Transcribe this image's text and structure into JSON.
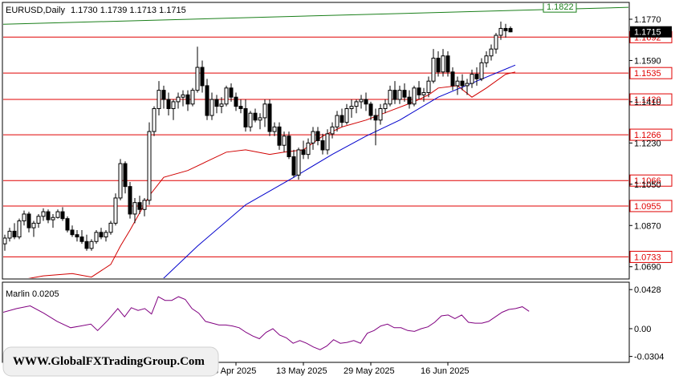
{
  "header": {
    "symbol": "EURUSD,Daily",
    "ohlc": "1.1730 1.1739 1.1713 1.1715"
  },
  "indicator": {
    "label": "Marlin 0.0205"
  },
  "watermark": {
    "text": "WWW.GlobalFXTradingGroup.Com"
  },
  "colors": {
    "bull": "#ffffff",
    "bear": "#000000",
    "wick": "#000000",
    "ma_fast": "#d00000",
    "ma_slow": "#0000cc",
    "levels": "#e00000",
    "channel": "#1a7f1a",
    "oscillator": "#800080"
  },
  "chart_data": [
    {
      "type": "candlestick",
      "title": "EURUSD,Daily",
      "y_ticks": [
        1.069,
        1.087,
        1.105,
        1.123,
        1.141,
        1.159,
        1.177
      ],
      "ylim": [
        1.064,
        1.184
      ],
      "x_ticks": [
        "25 Apr 2025",
        "13 May 2025",
        "29 May 2025",
        "16 Jun 2025"
      ],
      "current_price": "1.1715",
      "levels": [
        {
          "label": "1.1692",
          "value": 1.1692
        },
        {
          "label": "1.1535",
          "value": 1.1535
        },
        {
          "label": "1.1420",
          "value": 1.142
        },
        {
          "label": "1.1266",
          "value": 1.1266
        },
        {
          "label": "1.1066",
          "value": 1.1066
        },
        {
          "label": "1.0955",
          "value": 1.0955
        },
        {
          "label": "1.0733",
          "value": 1.0733
        }
      ],
      "channel_line": {
        "label": "1.1822",
        "start": 1.1748,
        "end": 1.1822
      },
      "candles": [
        [
          1.079,
          1.083,
          1.076,
          1.0815
        ],
        [
          1.0815,
          1.086,
          1.08,
          1.0845
        ],
        [
          1.0845,
          1.088,
          1.081,
          1.082
        ],
        [
          1.082,
          1.09,
          1.081,
          1.089
        ],
        [
          1.089,
          1.0935,
          1.087,
          1.092
        ],
        [
          1.092,
          1.093,
          1.084,
          1.086
        ],
        [
          1.086,
          1.089,
          1.082,
          1.088
        ],
        [
          1.088,
          1.092,
          1.086,
          1.091
        ],
        [
          1.091,
          1.0945,
          1.089,
          1.093
        ],
        [
          1.093,
          1.094,
          1.088,
          1.0895
        ],
        [
          1.0895,
          1.092,
          1.086,
          1.0905
        ],
        [
          1.0905,
          1.094,
          1.09,
          1.093
        ],
        [
          1.093,
          1.095,
          1.089,
          1.09
        ],
        [
          1.09,
          1.091,
          1.084,
          1.085
        ],
        [
          1.085,
          1.087,
          1.082,
          1.083
        ],
        [
          1.083,
          1.085,
          1.08,
          1.082
        ],
        [
          1.082,
          1.085,
          1.079,
          1.08
        ],
        [
          1.08,
          1.083,
          1.076,
          1.077
        ],
        [
          1.077,
          1.081,
          1.076,
          1.08
        ],
        [
          1.08,
          1.085,
          1.079,
          1.084
        ],
        [
          1.084,
          1.086,
          1.081,
          1.082
        ],
        [
          1.082,
          1.085,
          1.08,
          1.084
        ],
        [
          1.084,
          1.089,
          1.083,
          1.088
        ],
        [
          1.088,
          1.101,
          1.087,
          1.099
        ],
        [
          1.099,
          1.116,
          1.098,
          1.114
        ],
        [
          1.114,
          1.115,
          1.101,
          1.104
        ],
        [
          1.104,
          1.106,
          1.09,
          1.092
        ],
        [
          1.092,
          1.099,
          1.088,
          1.097
        ],
        [
          1.097,
          1.1,
          1.092,
          1.094
        ],
        [
          1.094,
          1.099,
          1.091,
          1.098
        ],
        [
          1.098,
          1.132,
          1.096,
          1.128
        ],
        [
          1.128,
          1.139,
          1.126,
          1.138
        ],
        [
          1.138,
          1.15,
          1.135,
          1.146
        ],
        [
          1.146,
          1.148,
          1.138,
          1.142
        ],
        [
          1.142,
          1.145,
          1.135,
          1.138
        ],
        [
          1.138,
          1.142,
          1.133,
          1.141
        ],
        [
          1.141,
          1.145,
          1.138,
          1.143
        ],
        [
          1.143,
          1.146,
          1.139,
          1.144
        ],
        [
          1.144,
          1.146,
          1.137,
          1.14
        ],
        [
          1.14,
          1.147,
          1.139,
          1.146
        ],
        [
          1.146,
          1.165,
          1.145,
          1.156
        ],
        [
          1.156,
          1.159,
          1.145,
          1.148
        ],
        [
          1.148,
          1.151,
          1.133,
          1.135
        ],
        [
          1.135,
          1.145,
          1.133,
          1.142
        ],
        [
          1.142,
          1.144,
          1.136,
          1.139
        ],
        [
          1.139,
          1.143,
          1.136,
          1.14
        ],
        [
          1.14,
          1.148,
          1.139,
          1.147
        ],
        [
          1.147,
          1.149,
          1.141,
          1.143
        ],
        [
          1.143,
          1.145,
          1.137,
          1.139
        ],
        [
          1.139,
          1.142,
          1.136,
          1.138
        ],
        [
          1.138,
          1.142,
          1.128,
          1.13
        ],
        [
          1.13,
          1.137,
          1.128,
          1.136
        ],
        [
          1.136,
          1.138,
          1.132,
          1.133
        ],
        [
          1.133,
          1.136,
          1.129,
          1.134
        ],
        [
          1.134,
          1.142,
          1.13,
          1.14
        ],
        [
          1.14,
          1.142,
          1.126,
          1.128
        ],
        [
          1.128,
          1.132,
          1.126,
          1.13
        ],
        [
          1.13,
          1.132,
          1.12,
          1.122
        ],
        [
          1.122,
          1.128,
          1.119,
          1.126
        ],
        [
          1.126,
          1.128,
          1.116,
          1.117
        ],
        [
          1.117,
          1.12,
          1.108,
          1.109
        ],
        [
          1.109,
          1.121,
          1.107,
          1.12
        ],
        [
          1.12,
          1.124,
          1.116,
          1.118
        ],
        [
          1.118,
          1.125,
          1.116,
          1.123
        ],
        [
          1.123,
          1.13,
          1.12,
          1.128
        ],
        [
          1.128,
          1.13,
          1.122,
          1.124
        ],
        [
          1.124,
          1.127,
          1.118,
          1.12
        ],
        [
          1.12,
          1.129,
          1.118,
          1.127
        ],
        [
          1.127,
          1.132,
          1.125,
          1.13
        ],
        [
          1.13,
          1.137,
          1.128,
          1.135
        ],
        [
          1.135,
          1.138,
          1.13,
          1.132
        ],
        [
          1.132,
          1.14,
          1.131,
          1.138
        ],
        [
          1.138,
          1.142,
          1.134,
          1.139
        ],
        [
          1.139,
          1.142,
          1.136,
          1.141
        ],
        [
          1.141,
          1.144,
          1.138,
          1.142
        ],
        [
          1.142,
          1.145,
          1.137,
          1.14
        ],
        [
          1.14,
          1.141,
          1.133,
          1.135
        ],
        [
          1.135,
          1.138,
          1.122,
          1.133
        ],
        [
          1.133,
          1.14,
          1.131,
          1.138
        ],
        [
          1.138,
          1.142,
          1.136,
          1.14
        ],
        [
          1.14,
          1.148,
          1.139,
          1.146
        ],
        [
          1.146,
          1.15,
          1.14,
          1.142
        ],
        [
          1.142,
          1.148,
          1.14,
          1.146
        ],
        [
          1.146,
          1.149,
          1.141,
          1.143
        ],
        [
          1.143,
          1.146,
          1.138,
          1.14
        ],
        [
          1.14,
          1.148,
          1.139,
          1.147
        ],
        [
          1.147,
          1.15,
          1.142,
          1.144
        ],
        [
          1.144,
          1.147,
          1.141,
          1.145
        ],
        [
          1.145,
          1.152,
          1.143,
          1.15
        ],
        [
          1.15,
          1.164,
          1.149,
          1.16
        ],
        [
          1.16,
          1.163,
          1.152,
          1.154
        ],
        [
          1.154,
          1.164,
          1.152,
          1.161
        ],
        [
          1.161,
          1.163,
          1.152,
          1.154
        ],
        [
          1.154,
          1.156,
          1.146,
          1.148
        ],
        [
          1.148,
          1.152,
          1.144,
          1.15
        ],
        [
          1.15,
          1.153,
          1.146,
          1.148
        ],
        [
          1.148,
          1.151,
          1.144,
          1.149
        ],
        [
          1.149,
          1.155,
          1.147,
          1.153
        ],
        [
          1.153,
          1.156,
          1.148,
          1.151
        ],
        [
          1.151,
          1.16,
          1.15,
          1.158
        ],
        [
          1.158,
          1.163,
          1.156,
          1.161
        ],
        [
          1.161,
          1.166,
          1.159,
          1.164
        ],
        [
          1.164,
          1.171,
          1.162,
          1.17
        ],
        [
          1.17,
          1.176,
          1.168,
          1.173
        ],
        [
          1.173,
          1.175,
          1.169,
          1.172
        ],
        [
          1.173,
          1.1739,
          1.1713,
          1.1715
        ]
      ],
      "ma_fast_points": [
        [
          0,
          1.062
        ],
        [
          8,
          1.065
        ],
        [
          14,
          1.066
        ],
        [
          18,
          1.0645
        ],
        [
          22,
          1.07
        ],
        [
          24,
          1.078
        ],
        [
          26,
          1.085
        ],
        [
          30,
          1.1
        ],
        [
          33,
          1.108
        ],
        [
          38,
          1.111
        ],
        [
          42,
          1.115
        ],
        [
          46,
          1.119
        ],
        [
          50,
          1.12
        ],
        [
          55,
          1.118
        ],
        [
          58,
          1.119
        ],
        [
          62,
          1.12
        ],
        [
          66,
          1.126
        ],
        [
          70,
          1.13
        ],
        [
          75,
          1.133
        ],
        [
          80,
          1.137
        ],
        [
          85,
          1.141
        ],
        [
          88,
          1.144
        ],
        [
          90,
          1.147
        ],
        [
          94,
          1.148
        ],
        [
          97,
          1.143
        ],
        [
          100,
          1.147
        ],
        [
          104,
          1.153
        ],
        [
          106,
          1.154
        ]
      ],
      "ma_slow_points": [
        [
          31,
          1.06
        ],
        [
          40,
          1.078
        ],
        [
          50,
          1.096
        ],
        [
          60,
          1.108
        ],
        [
          68,
          1.118
        ],
        [
          75,
          1.126
        ],
        [
          82,
          1.133
        ],
        [
          90,
          1.143
        ],
        [
          98,
          1.15
        ],
        [
          106,
          1.157
        ]
      ]
    },
    {
      "type": "line",
      "title": "Marlin 0.0205",
      "y_ticks": [
        0.0428,
        0.0,
        -0.0304
      ],
      "y_tick_labels": [
        "0.0428",
        "0.00",
        "-0.0304"
      ],
      "ylim": [
        -0.036,
        0.05
      ],
      "points": [
        [
          0,
          0.018
        ],
        [
          4,
          0.022
        ],
        [
          8,
          0.025
        ],
        [
          12,
          0.017
        ],
        [
          16,
          0.008
        ],
        [
          20,
          0.001
        ],
        [
          23,
          0.003
        ],
        [
          26,
          0.005
        ],
        [
          28,
          -0.002
        ],
        [
          31,
          0.009
        ],
        [
          34,
          0.022
        ],
        [
          36,
          0.013
        ],
        [
          38,
          0.023
        ],
        [
          40,
          0.02
        ],
        [
          42,
          0.022
        ],
        [
          44,
          0.016
        ],
        [
          46,
          0.035
        ],
        [
          48,
          0.031
        ],
        [
          50,
          0.031
        ],
        [
          52,
          0.035
        ],
        [
          54,
          0.032
        ],
        [
          56,
          0.022
        ],
        [
          58,
          0.017
        ],
        [
          60,
          0.008
        ],
        [
          62,
          0.006
        ],
        [
          64,
          0.004
        ],
        [
          66,
          0.004
        ],
        [
          68,
          0.003
        ],
        [
          70,
          0.001
        ],
        [
          72,
          -0.004
        ],
        [
          74,
          -0.008
        ],
        [
          76,
          -0.011
        ],
        [
          78,
          -0.004
        ],
        [
          80,
          0.0
        ],
        [
          82,
          -0.007
        ],
        [
          84,
          -0.01
        ],
        [
          86,
          -0.016
        ],
        [
          88,
          -0.013
        ],
        [
          90,
          -0.016
        ],
        [
          92,
          -0.02
        ],
        [
          94,
          -0.023
        ],
        [
          96,
          -0.019
        ],
        [
          98,
          -0.012
        ],
        [
          100,
          -0.016
        ],
        [
          102,
          -0.015
        ],
        [
          104,
          -0.013
        ],
        [
          106,
          -0.016
        ],
        [
          108,
          -0.005
        ],
        [
          110,
          -0.002
        ],
        [
          112,
          0.003
        ],
        [
          114,
          0.005
        ],
        [
          116,
          0.001
        ],
        [
          118,
          0.001
        ],
        [
          120,
          -0.002
        ],
        [
          122,
          -0.003
        ],
        [
          124,
          0.0
        ],
        [
          126,
          0.002
        ],
        [
          128,
          0.007
        ],
        [
          130,
          0.014
        ],
        [
          132,
          0.015
        ],
        [
          134,
          0.011
        ],
        [
          136,
          0.015
        ],
        [
          138,
          0.007
        ],
        [
          140,
          0.006
        ],
        [
          142,
          0.006
        ],
        [
          144,
          0.008
        ],
        [
          146,
          0.013
        ],
        [
          148,
          0.018
        ],
        [
          150,
          0.021
        ],
        [
          152,
          0.022
        ],
        [
          154,
          0.024
        ],
        [
          156,
          0.019
        ]
      ]
    }
  ]
}
